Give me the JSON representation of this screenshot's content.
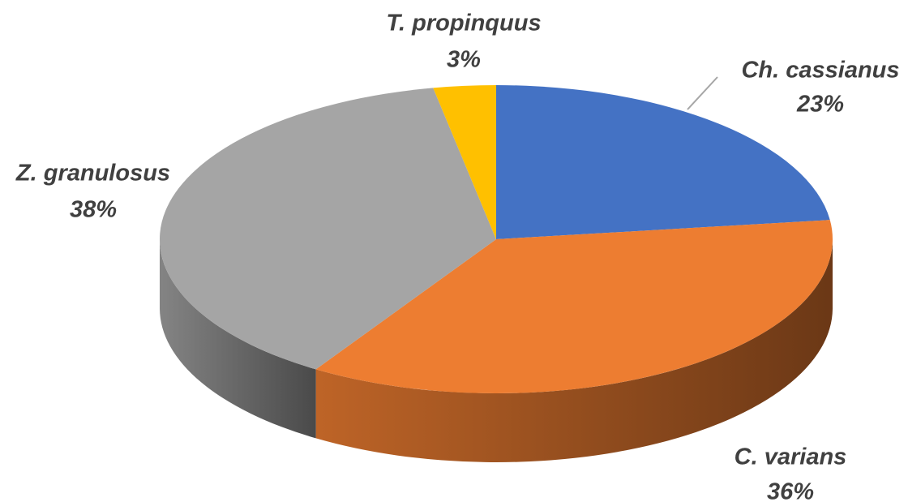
{
  "chart_data": {
    "type": "pie",
    "categories": [
      "Ch. cassianus",
      "C. varians",
      "Z. granulosus",
      "T. propinquus"
    ],
    "values": [
      23,
      36,
      38,
      3
    ],
    "value_labels": [
      "23%",
      "36%",
      "38%",
      "3%"
    ],
    "colors": [
      "#4472c4",
      "#ed7d31",
      "#a5a5a5",
      "#ffc000"
    ]
  }
}
